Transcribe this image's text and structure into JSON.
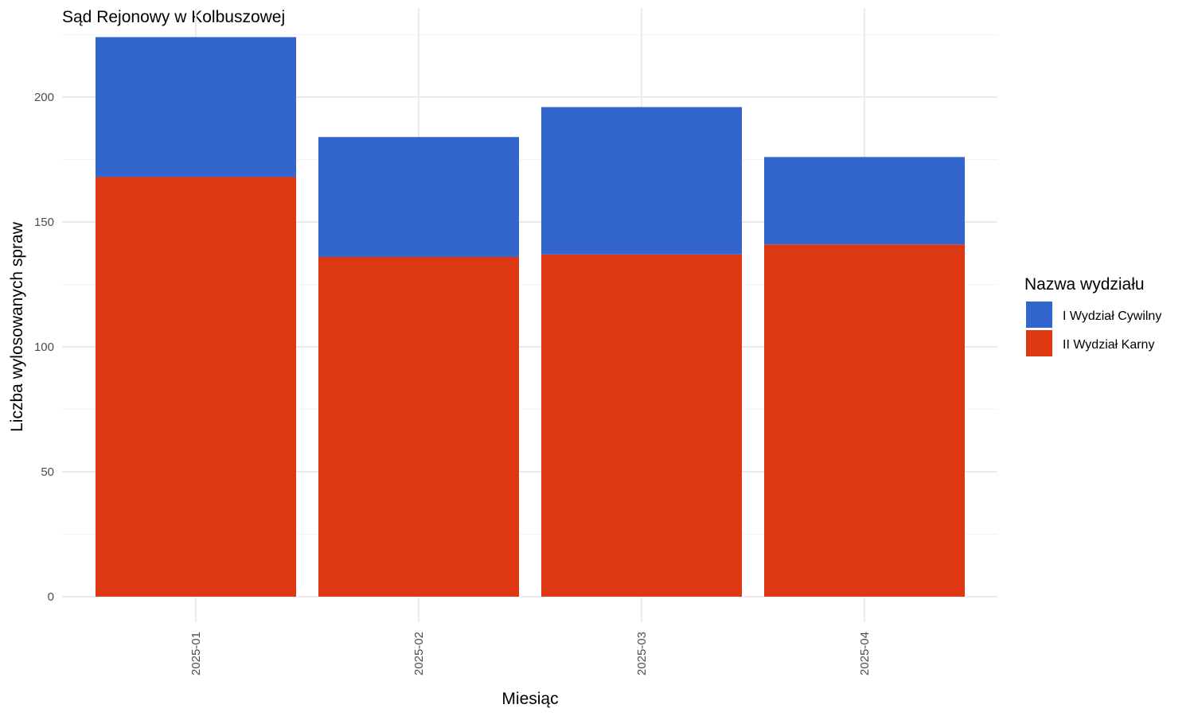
{
  "chart_data": {
    "type": "bar",
    "stacked": true,
    "title": "Sąd Rejonowy w Kolbuszowej",
    "xlabel": "Miesiąc",
    "ylabel": "Liczba wylosowanych spraw",
    "categories": [
      "2025-01",
      "2025-02",
      "2025-03",
      "2025-04"
    ],
    "series": [
      {
        "name": "II Wydział Karny",
        "color": "#dd3811",
        "values": [
          168,
          136,
          137,
          141
        ]
      },
      {
        "name": "I Wydział Cywilny",
        "color": "#3366cc",
        "values": [
          56,
          48,
          59,
          35
        ]
      }
    ],
    "ylim": [
      0,
      224
    ],
    "yticks": [
      0,
      50,
      100,
      150,
      200
    ],
    "grid": true,
    "legend": {
      "title": "Nazwa wydziału",
      "position": "right",
      "entries": [
        {
          "label": "I Wydział Cywilny",
          "color": "#3366cc"
        },
        {
          "label": "II Wydział Karny",
          "color": "#dd3811"
        }
      ]
    }
  }
}
